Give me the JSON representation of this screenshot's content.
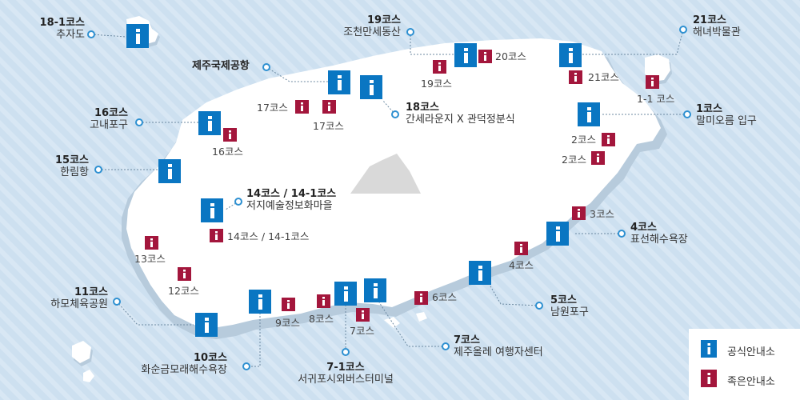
{
  "legend": {
    "official": "공식안내소",
    "small": "족은안내소"
  },
  "courses": [
    {
      "id": "18-1",
      "name": "18-1코스",
      "place": "추자도"
    },
    {
      "id": "19",
      "name": "19코스",
      "place": "조천만세동산"
    },
    {
      "id": "21",
      "name": "21코스",
      "place": "해녀박물관"
    },
    {
      "id": "airport",
      "name": "제주국제공항"
    },
    {
      "id": "16",
      "name": "16코스",
      "place": "고내포구"
    },
    {
      "id": "18",
      "name": "18코스",
      "place": "간세라운지 X 관덕정분식"
    },
    {
      "id": "1",
      "name": "1코스",
      "place": "말미오름 입구"
    },
    {
      "id": "15",
      "name": "15코스",
      "place": "한림항"
    },
    {
      "id": "14",
      "name": "14코스 / 14-1코스",
      "place": "저지예술정보화마을"
    },
    {
      "id": "4",
      "name": "4코스",
      "place": "표선해수욕장"
    },
    {
      "id": "5",
      "name": "5코스",
      "place": "남원포구"
    },
    {
      "id": "11",
      "name": "11코스",
      "place": "하모체육공원"
    },
    {
      "id": "10",
      "name": "10코스",
      "place": "화순금모래해수욕장"
    },
    {
      "id": "7-1",
      "name": "7-1코스",
      "place": "서귀포시외버스터미널"
    },
    {
      "id": "7",
      "name": "7코스",
      "place": "제주올레 여행자센터"
    }
  ],
  "small_labels": {
    "c20": "20코스",
    "c19": "19코스",
    "c21": "21코스",
    "c1_1": "1-1 코스",
    "c17a": "17코스",
    "c17b": "17코스",
    "c16": "16코스",
    "c2a": "2코스",
    "c2b": "2코스",
    "c3": "3코스",
    "c4": "4코스",
    "c14": "14코스 / 14-1코스",
    "c13": "13코스",
    "c12": "12코스",
    "c6": "6코스",
    "c9": "9코스",
    "c8": "8코스",
    "c7": "7코스"
  },
  "colors": {
    "sea": "#cde0f0",
    "sea_stripe": "#e4eef8",
    "island": "#ffffff",
    "shore": "#b7cbdc",
    "official": "#0a76c2",
    "small": "#a3163c",
    "leader": "#6d8aa2",
    "mountain": "#d9d9d9"
  },
  "icons": {
    "official": "info-icon",
    "small": "info-icon",
    "mountain": "mountain-icon"
  }
}
